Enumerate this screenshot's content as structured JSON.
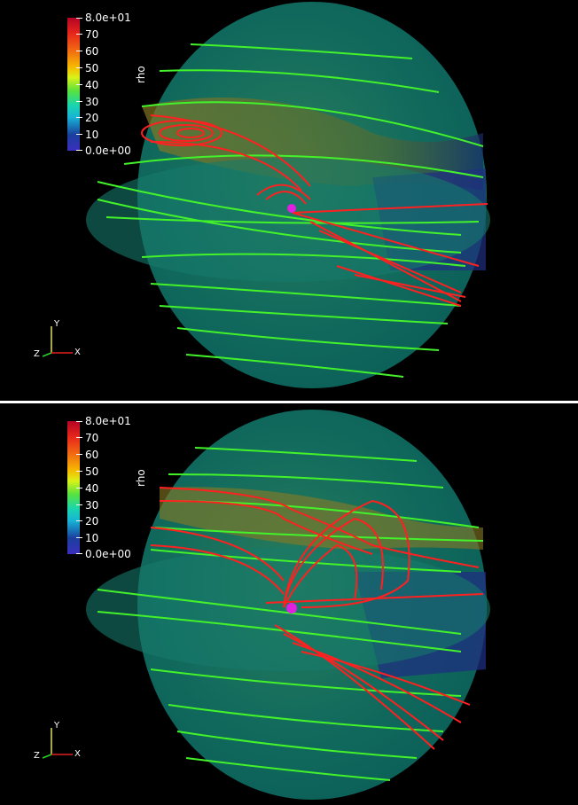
{
  "colorbar": {
    "variable": "rho",
    "labels": [
      "8.0e+01",
      "70",
      "60",
      "50",
      "40",
      "30",
      "20",
      "10",
      "0.0e+00"
    ],
    "range": [
      0,
      80
    ]
  },
  "axes": {
    "x": "X",
    "y": "Y",
    "z": "Z"
  },
  "colors": {
    "background": "#000000",
    "field_lines_open": "#3cff2a",
    "field_lines_closed": "#ff1a1a",
    "planet": "#e020e0",
    "plane": "#0e7a63"
  },
  "panels": [
    "top-view",
    "bottom-view"
  ]
}
